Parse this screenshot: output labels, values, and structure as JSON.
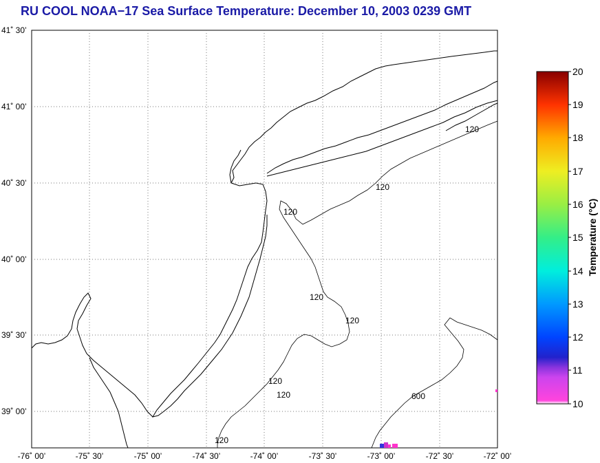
{
  "title": "RU COOL  NOAA−17  Sea Surface Temperature:  December 10, 2003 0239 GMT",
  "map": {
    "lat_labels": [
      "41˚ 30’",
      "41˚ 00’",
      "40˚ 30’",
      "40˚ 00’",
      "39˚ 30’",
      "39˚ 00’"
    ],
    "lon_labels": [
      "-76˚ 00’",
      "-75˚ 30’",
      "-75˚ 00’",
      "-74˚ 30’",
      "-74˚ 00’",
      "-73˚ 30’",
      "-73˚ 00’",
      "-72˚ 30’",
      "-72˚ 00’"
    ],
    "lat_range": [
      38.75,
      41.5
    ],
    "lon_range": [
      -76.0,
      -72.0
    ],
    "grid": true,
    "isobath_labels": [
      "120",
      "120",
      "120",
      "120",
      "120",
      "120",
      "120",
      "120",
      "600"
    ]
  },
  "colorbar": {
    "label": "Temperature (°C)",
    "ticks": [
      "20",
      "19",
      "18",
      "17",
      "16",
      "15",
      "14",
      "13",
      "12",
      "11",
      "10"
    ],
    "range": [
      10,
      20
    ]
  }
}
